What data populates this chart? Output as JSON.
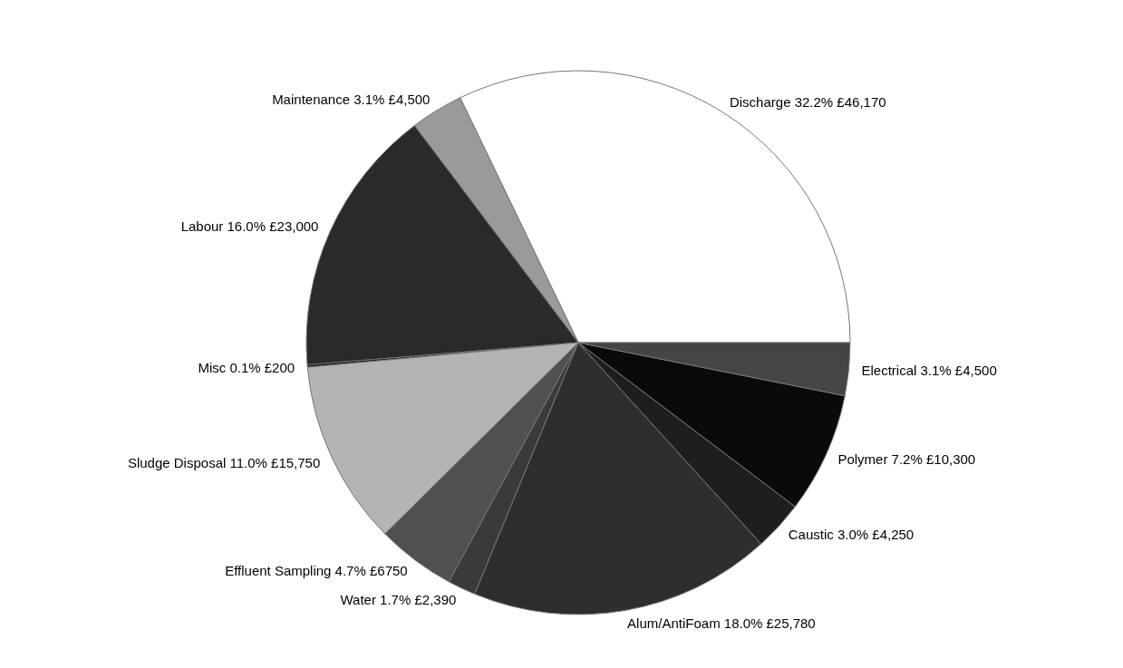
{
  "chart_data": {
    "type": "pie",
    "categories": [
      "Discharge",
      "Maintenance",
      "Labour",
      "Misc",
      "Sludge Disposal",
      "Effluent Sampling",
      "Water",
      "Alum/AntiFoam",
      "Caustic",
      "Polymer",
      "Electrical"
    ],
    "values": [
      46170,
      4500,
      23000,
      200,
      15750,
      6750,
      2390,
      25780,
      4250,
      10300,
      4500
    ],
    "value_labels": [
      "32.2% £46,170",
      "3.1% £4,500",
      "16.0% £23,000",
      "0.1% £200",
      "11.0% £15,750",
      "4.7% £6750",
      "1.7% £2,390",
      "18.0% £25,780",
      "3.0% £4,250",
      "7.2% £10,300",
      "3.1% £4,500"
    ],
    "colors": [
      "#ffffff",
      "#9a9a9a",
      "#2a2a2a",
      "#111111",
      "#b4b4b4",
      "#505050",
      "#3a3a3a",
      "#2e2e2e",
      "#1e1e1e",
      "#0a0a0a",
      "#454545"
    ],
    "legend": false
  }
}
